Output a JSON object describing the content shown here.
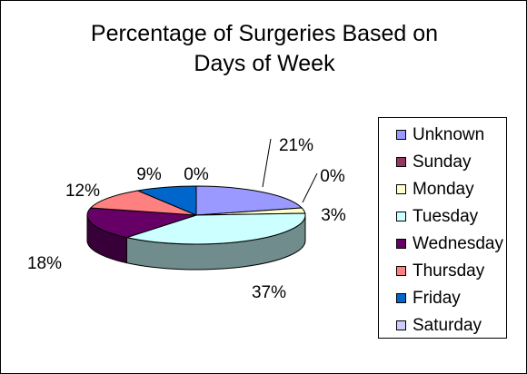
{
  "chart_data": {
    "type": "pie",
    "title": "Percentage of Surgeries Based on Days of Week",
    "title_lines": [
      "Percentage of Surgeries Based on",
      "Days of Week"
    ],
    "style": "3d",
    "legend_position": "right",
    "slices": [
      {
        "name": "Unknown",
        "value": 21,
        "label": "21%",
        "color": "#9999FF"
      },
      {
        "name": "Sunday",
        "value": 0,
        "label": "0%",
        "color": "#993366"
      },
      {
        "name": "Monday",
        "value": 3,
        "label": "3%",
        "color": "#FFFFCC"
      },
      {
        "name": "Tuesday",
        "value": 37,
        "label": "37%",
        "color": "#CCFFFF"
      },
      {
        "name": "Wednesday",
        "value": 18,
        "label": "18%",
        "color": "#660066"
      },
      {
        "name": "Thursday",
        "value": 12,
        "label": "12%",
        "color": "#FF8080"
      },
      {
        "name": "Friday",
        "value": 9,
        "label": "9%",
        "color": "#0066CC"
      },
      {
        "name": "Saturday",
        "value": 0,
        "label": "0%",
        "color": "#CCCCFF"
      }
    ]
  }
}
